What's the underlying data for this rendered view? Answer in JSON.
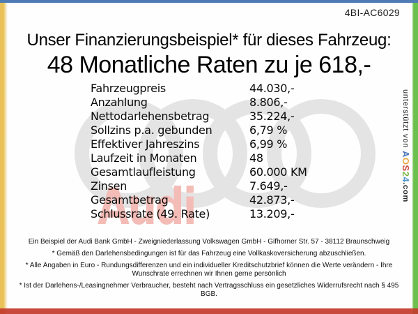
{
  "frame": {
    "top_color": "#4e7bb4",
    "left_color": "#e9c158",
    "right_color": "#6cc04e",
    "bottom_color": "#c23b2b"
  },
  "ref_code": "4BI-AC6029",
  "header": {
    "line1": "Unser Finanzierungsbeispiel* für dieses Fahrzeug:",
    "line2": "48 Monatliche Raten zu je 618,-"
  },
  "finance": {
    "rows": [
      {
        "label": "Fahrzeugpreis",
        "value": "44.030,-"
      },
      {
        "label": "Anzahlung",
        "value": "8.806,-"
      },
      {
        "label": "Nettodarlehensbetrag",
        "value": "35.224,-"
      },
      {
        "label": "Sollzins p.a. gebunden",
        "value": "6,79 %"
      },
      {
        "label": "Effektiver Jahreszins",
        "value": "6,99 %"
      },
      {
        "label": "Laufzeit in Monaten",
        "value": "48"
      },
      {
        "label": "Gesamtlaufleistung",
        "value": "60.000 KM"
      },
      {
        "label": "Zinsen",
        "value": "7.649,-"
      },
      {
        "label": "Gesamtbetrag",
        "value": "42.873,-"
      },
      {
        "label": "Schlussrate (49. Rate)",
        "value": "13.209,-"
      }
    ]
  },
  "watermark": {
    "brand_text": "Audi",
    "text_color": "#f3bcb6",
    "rings_color": "#e4e4e4"
  },
  "support_banner": {
    "prefix": "unterstützt von ",
    "brand": [
      {
        "char": "A",
        "color": "#4a74b8"
      },
      {
        "char": "O",
        "color": "#eaa83e"
      },
      {
        "char": "S",
        "color": "#cc4a3e"
      },
      {
        "char": "2",
        "color": "#7db343"
      },
      {
        "char": "4",
        "color": "#4f94cd"
      }
    ],
    "suffix": ".com"
  },
  "footer": {
    "paragraphs": [
      "Ein Beispiel der Audi Bank GmbH - Zweigniederlassung Volkswagen GmbH - Gifhorner Str. 57 - 38112 Braunschweig",
      "* Gemäß den Darlehensbedingungen ist für das Fahrzeug eine Vollkaskoversicherung abzuschließen.",
      "* Alle Angaben in Euro - Rundungsdifferenzen und ein individueller Kreditschutzbrief können die Werte verändern - Ihre Wunschrate errechnen wir Ihnen gerne persönlich",
      "* Ist der Darlehens-/Leasingnehmer Verbraucher, besteht nach Vertragsschluss ein gesetzliches Widerrufsrecht nach § 495 BGB."
    ]
  }
}
